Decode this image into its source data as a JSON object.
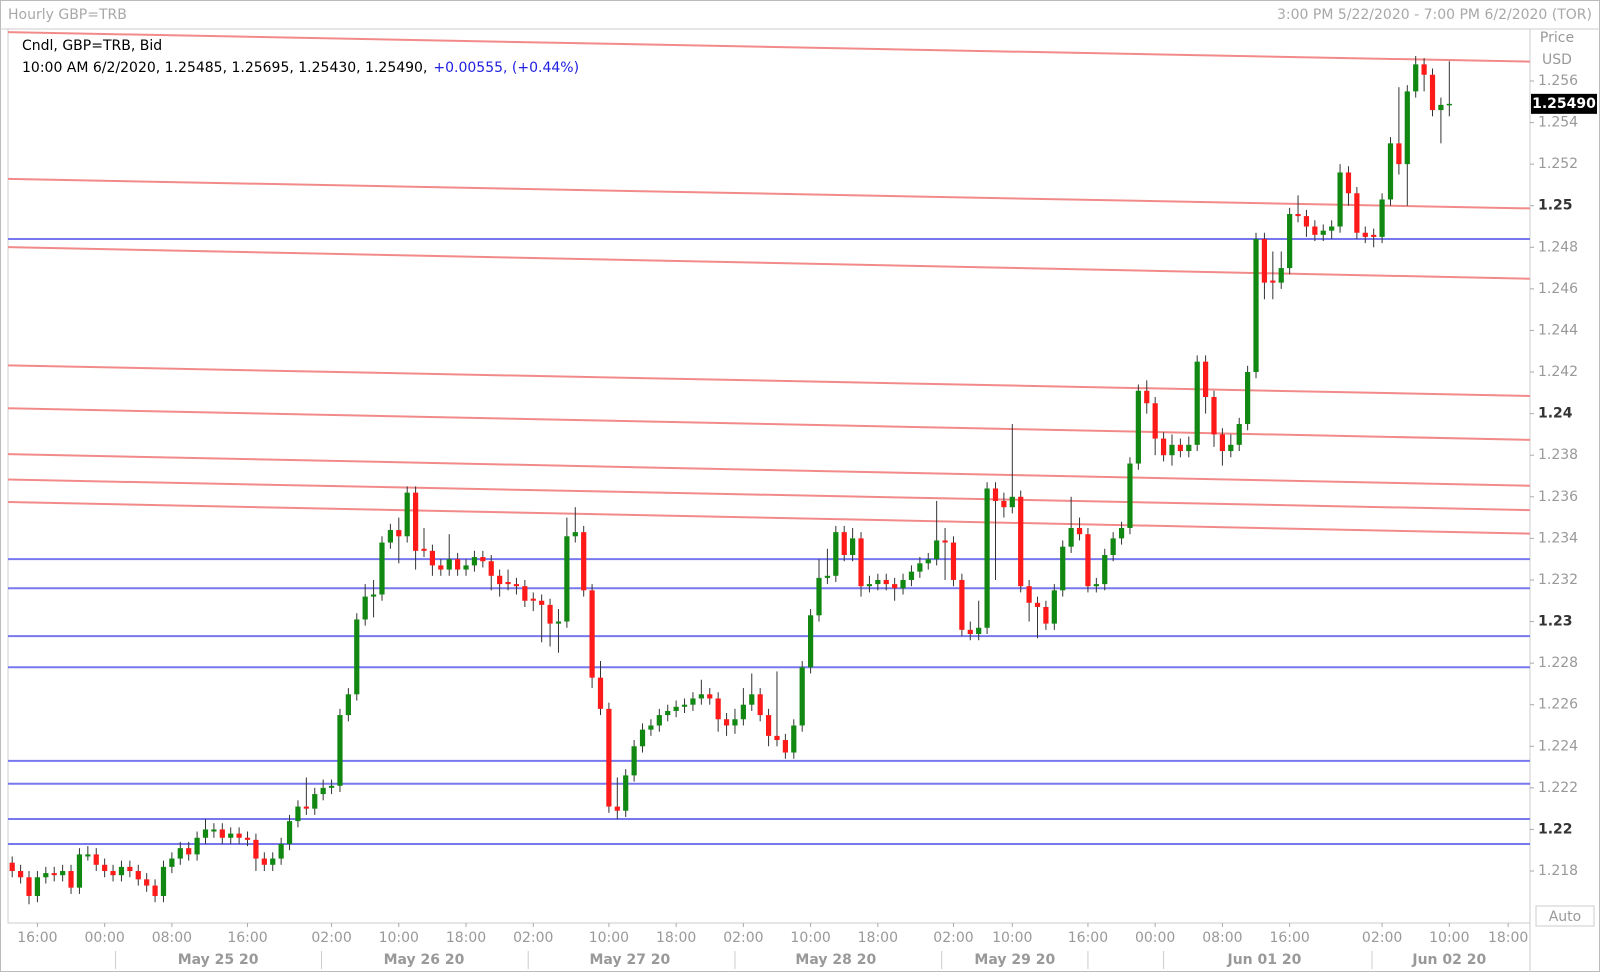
{
  "chart_data": {
    "type": "candlestick",
    "title": "Hourly GBP=TRB",
    "range": "3:00 PM 5/22/2020 - 7:00 PM 6/2/2020 (TOR)",
    "legend": "Cndl, GBP=TRB, Bid",
    "info": "10:00 AM 6/2/2020, 1.25485, 1.25695, 1.25430, 1.25490,",
    "change": "+0.00555, (+0.44%)",
    "axis_title": "Price",
    "axis_unit": "USD",
    "axis_mode": "Auto",
    "last_price": {
      "value": 1.2549,
      "label": "1.25490"
    },
    "up_color": "#118811",
    "down_color": "#ff1a1a",
    "trendline_color": "#f28a8a",
    "level_color": "#7878ee",
    "ylim": [
      1.2155,
      1.2585
    ],
    "yticks": [
      {
        "value": 1.218,
        "label": "1.218"
      },
      {
        "value": 1.22,
        "label": "1.22"
      },
      {
        "value": 1.222,
        "label": "1.222"
      },
      {
        "value": 1.224,
        "label": "1.224"
      },
      {
        "value": 1.226,
        "label": "1.226"
      },
      {
        "value": 1.228,
        "label": "1.228"
      },
      {
        "value": 1.23,
        "label": "1.23"
      },
      {
        "value": 1.232,
        "label": "1.232"
      },
      {
        "value": 1.234,
        "label": "1.234"
      },
      {
        "value": 1.236,
        "label": "1.236"
      },
      {
        "value": 1.238,
        "label": "1.238"
      },
      {
        "value": 1.24,
        "label": "1.24"
      },
      {
        "value": 1.242,
        "label": "1.242"
      },
      {
        "value": 1.244,
        "label": "1.244"
      },
      {
        "value": 1.246,
        "label": "1.246"
      },
      {
        "value": 1.248,
        "label": "1.248"
      },
      {
        "value": 1.25,
        "label": "1.25"
      },
      {
        "value": 1.252,
        "label": "1.252"
      },
      {
        "value": 1.254,
        "label": "1.254"
      },
      {
        "value": 1.256,
        "label": "1.256"
      }
    ],
    "xlim": [
      -0.5,
      180.6
    ],
    "xticks": [
      {
        "value": 3,
        "label": "16:00"
      },
      {
        "value": 11,
        "label": "00:00"
      },
      {
        "value": 19,
        "label": "08:00"
      },
      {
        "value": 28,
        "label": "16:00"
      },
      {
        "value": 38,
        "label": "02:00"
      },
      {
        "value": 46,
        "label": "10:00"
      },
      {
        "value": 54,
        "label": "18:00"
      },
      {
        "value": 62,
        "label": "02:00"
      },
      {
        "value": 71,
        "label": "10:00"
      },
      {
        "value": 79,
        "label": "18:00"
      },
      {
        "value": 87,
        "label": "02:00"
      },
      {
        "value": 95,
        "label": "10:00"
      },
      {
        "value": 103,
        "label": "18:00"
      },
      {
        "value": 112,
        "label": "02:00"
      },
      {
        "value": 119,
        "label": "10:00"
      },
      {
        "value": 128,
        "label": "16:00"
      },
      {
        "value": 136,
        "label": "00:00"
      },
      {
        "value": 144,
        "label": "08:00"
      },
      {
        "value": 152,
        "label": "16:00"
      },
      {
        "value": 163,
        "label": "02:00"
      },
      {
        "value": 171,
        "label": "10:00"
      },
      {
        "value": 178,
        "label": "18:00"
      }
    ],
    "day_labels": [
      {
        "value": 24.5,
        "label": "May 25 20"
      },
      {
        "value": 49,
        "label": "May 26 20"
      },
      {
        "value": 73.5,
        "label": "May 27 20"
      },
      {
        "value": 98,
        "label": "May 28 20"
      },
      {
        "value": 119.3,
        "label": "May 29 20"
      },
      {
        "value": 149,
        "label": "Jun 01 20"
      },
      {
        "value": 171,
        "label": "Jun 02 20"
      }
    ],
    "day_ticks": [
      12.3,
      36.8,
      61.4,
      86,
      110.6,
      128,
      137,
      161.8
    ],
    "trendlines": [
      {
        "start": 1.25835,
        "end": 1.25693
      },
      {
        "start": 1.25129,
        "end": 1.24987
      },
      {
        "start": 1.24801,
        "end": 1.24649
      },
      {
        "start": 1.24232,
        "end": 1.24085
      },
      {
        "start": 1.24026,
        "end": 1.23874
      },
      {
        "start": 1.23805,
        "end": 1.23653
      },
      {
        "start": 1.23683,
        "end": 1.23536
      },
      {
        "start": 1.23575,
        "end": 1.23423
      }
    ],
    "levels": [
      1.2484,
      1.233,
      1.2316,
      1.2293,
      1.2278,
      1.2233,
      1.2222,
      1.2205,
      1.2193
    ],
    "ohlc": [
      [
        1.2184,
        1.2187,
        1.2177,
        1.218
      ],
      [
        1.218,
        1.2183,
        1.2174,
        1.2177
      ],
      [
        1.2177,
        1.218,
        1.2164,
        1.2168
      ],
      [
        1.2168,
        1.218,
        1.2165,
        1.2177
      ],
      [
        1.2177,
        1.2182,
        1.2174,
        1.2179
      ],
      [
        1.2179,
        1.2182,
        1.2175,
        1.2178
      ],
      [
        1.2178,
        1.2183,
        1.2175,
        1.218
      ],
      [
        1.218,
        1.2183,
        1.2169,
        1.2172
      ],
      [
        1.2172,
        1.2191,
        1.2169,
        1.2188
      ],
      [
        1.2187,
        1.2192,
        1.2185,
        1.2188
      ],
      [
        1.2188,
        1.2191,
        1.218,
        1.2183
      ],
      [
        1.2183,
        1.2186,
        1.2177,
        1.218
      ],
      [
        1.218,
        1.2183,
        1.2175,
        1.2178
      ],
      [
        1.2178,
        1.2185,
        1.2175,
        1.2182
      ],
      [
        1.2182,
        1.2185,
        1.2177,
        1.218
      ],
      [
        1.218,
        1.2183,
        1.2173,
        1.2176
      ],
      [
        1.2176,
        1.2179,
        1.217,
        1.2173
      ],
      [
        1.2173,
        1.2176,
        1.2165,
        1.2168
      ],
      [
        1.2168,
        1.2185,
        1.2165,
        1.2182
      ],
      [
        1.2182,
        1.2189,
        1.2179,
        1.2186
      ],
      [
        1.2186,
        1.2194,
        1.2183,
        1.2191
      ],
      [
        1.2191,
        1.2194,
        1.2185,
        1.2188
      ],
      [
        1.2188,
        1.2199,
        1.2185,
        1.2196
      ],
      [
        1.2196,
        1.2205,
        1.2193,
        1.22
      ],
      [
        1.2199,
        1.2203,
        1.2196,
        1.22
      ],
      [
        1.22,
        1.2203,
        1.2193,
        1.2196
      ],
      [
        1.2196,
        1.2201,
        1.2193,
        1.2198
      ],
      [
        1.2198,
        1.2201,
        1.2193,
        1.2196
      ],
      [
        1.2196,
        1.2199,
        1.2192,
        1.2195
      ],
      [
        1.2195,
        1.2198,
        1.218,
        1.2186
      ],
      [
        1.2186,
        1.2189,
        1.218,
        1.2183
      ],
      [
        1.2183,
        1.2189,
        1.218,
        1.2186
      ],
      [
        1.2186,
        1.2196,
        1.2183,
        1.2193
      ],
      [
        1.2193,
        1.2207,
        1.219,
        1.2204
      ],
      [
        1.2204,
        1.2214,
        1.2201,
        1.2211
      ],
      [
        1.2211,
        1.2225,
        1.2207,
        1.221
      ],
      [
        1.221,
        1.222,
        1.2207,
        1.2217
      ],
      [
        1.2217,
        1.2224,
        1.2214,
        1.222
      ],
      [
        1.222,
        1.2224,
        1.2217,
        1.2221
      ],
      [
        1.2221,
        1.2258,
        1.2218,
        1.2255
      ],
      [
        1.2255,
        1.2268,
        1.2252,
        1.2265
      ],
      [
        1.2265,
        1.2304,
        1.2262,
        1.2301
      ],
      [
        1.2301,
        1.2318,
        1.2298,
        1.2312
      ],
      [
        1.2312,
        1.232,
        1.2302,
        1.2313
      ],
      [
        1.2313,
        1.2341,
        1.231,
        1.2338
      ],
      [
        1.2338,
        1.2347,
        1.2335,
        1.2344
      ],
      [
        1.2344,
        1.235,
        1.2328,
        1.2341
      ],
      [
        1.2341,
        1.2365,
        1.2338,
        1.2362
      ],
      [
        1.2362,
        1.2365,
        1.2325,
        1.2334
      ],
      [
        1.2335,
        1.2345,
        1.2331,
        1.2334
      ],
      [
        1.2334,
        1.2337,
        1.2322,
        1.2327
      ],
      [
        1.2327,
        1.233,
        1.2322,
        1.2325
      ],
      [
        1.2325,
        1.2342,
        1.2322,
        1.233
      ],
      [
        1.233,
        1.2333,
        1.2322,
        1.2325
      ],
      [
        1.2325,
        1.233,
        1.2322,
        1.2327
      ],
      [
        1.2327,
        1.2334,
        1.2324,
        1.2331
      ],
      [
        1.2331,
        1.2334,
        1.2326,
        1.2329
      ],
      [
        1.2329,
        1.2332,
        1.2315,
        1.2322
      ],
      [
        1.2322,
        1.2325,
        1.2312,
        1.2318
      ],
      [
        1.2319,
        1.2325,
        1.2315,
        1.2318
      ],
      [
        1.2318,
        1.2321,
        1.2313,
        1.2317
      ],
      [
        1.2317,
        1.232,
        1.2307,
        1.231
      ],
      [
        1.2311,
        1.2314,
        1.2305,
        1.231
      ],
      [
        1.231,
        1.2313,
        1.229,
        1.2308
      ],
      [
        1.2308,
        1.2311,
        1.2288,
        1.2299
      ],
      [
        1.2299,
        1.2306,
        1.2285,
        1.23
      ],
      [
        1.23,
        1.235,
        1.2297,
        1.2341
      ],
      [
        1.2341,
        1.2355,
        1.2338,
        1.2343
      ],
      [
        1.2343,
        1.2346,
        1.2312,
        1.2315
      ],
      [
        1.2315,
        1.2318,
        1.2268,
        1.2273
      ],
      [
        1.2273,
        1.2281,
        1.2255,
        1.2258
      ],
      [
        1.2258,
        1.2261,
        1.2208,
        1.2211
      ],
      [
        1.2211,
        1.2225,
        1.2205,
        1.2209
      ],
      [
        1.2209,
        1.2229,
        1.2206,
        1.2226
      ],
      [
        1.2226,
        1.2243,
        1.2223,
        1.224
      ],
      [
        1.224,
        1.2251,
        1.2237,
        1.2248
      ],
      [
        1.2248,
        1.2253,
        1.2245,
        1.225
      ],
      [
        1.225,
        1.2258,
        1.2247,
        1.2255
      ],
      [
        1.2255,
        1.226,
        1.2252,
        1.2257
      ],
      [
        1.2257,
        1.2262,
        1.2254,
        1.2259
      ],
      [
        1.2259,
        1.2263,
        1.2256,
        1.226
      ],
      [
        1.226,
        1.2266,
        1.2257,
        1.2263
      ],
      [
        1.2263,
        1.2272,
        1.226,
        1.2265
      ],
      [
        1.2265,
        1.2268,
        1.226,
        1.2263
      ],
      [
        1.2263,
        1.2266,
        1.2247,
        1.2253
      ],
      [
        1.2253,
        1.2256,
        1.2245,
        1.225
      ],
      [
        1.225,
        1.2258,
        1.2246,
        1.2253
      ],
      [
        1.2253,
        1.2268,
        1.225,
        1.226
      ],
      [
        1.226,
        1.2275,
        1.2257,
        1.2265
      ],
      [
        1.2265,
        1.2268,
        1.2252,
        1.2255
      ],
      [
        1.2255,
        1.2258,
        1.224,
        1.2245
      ],
      [
        1.2245,
        1.2276,
        1.224,
        1.2243
      ],
      [
        1.2243,
        1.2246,
        1.2234,
        1.2237
      ],
      [
        1.2237,
        1.2253,
        1.2234,
        1.225
      ],
      [
        1.225,
        1.2281,
        1.2247,
        1.2278
      ],
      [
        1.2278,
        1.2306,
        1.2275,
        1.2303
      ],
      [
        1.2303,
        1.233,
        1.23,
        1.2321
      ],
      [
        1.2321,
        1.2335,
        1.2318,
        1.2322
      ],
      [
        1.2322,
        1.2346,
        1.2319,
        1.2343
      ],
      [
        1.2343,
        1.2346,
        1.2329,
        1.2332
      ],
      [
        1.2332,
        1.2345,
        1.2329,
        1.234
      ],
      [
        1.234,
        1.2343,
        1.2312,
        1.2317
      ],
      [
        1.2317,
        1.2322,
        1.2314,
        1.2318
      ],
      [
        1.2318,
        1.2323,
        1.2315,
        1.232
      ],
      [
        1.232,
        1.2323,
        1.2315,
        1.2318
      ],
      [
        1.2318,
        1.2321,
        1.231,
        1.2316
      ],
      [
        1.2316,
        1.2323,
        1.2313,
        1.232
      ],
      [
        1.232,
        1.2327,
        1.2317,
        1.2324
      ],
      [
        1.2324,
        1.2331,
        1.2321,
        1.2328
      ],
      [
        1.2328,
        1.2333,
        1.2325,
        1.233
      ],
      [
        1.233,
        1.2358,
        1.2327,
        1.2339
      ],
      [
        1.2339,
        1.2345,
        1.232,
        1.2338
      ],
      [
        1.2338,
        1.2341,
        1.2317,
        1.232
      ],
      [
        1.232,
        1.2323,
        1.2293,
        1.2296
      ],
      [
        1.2296,
        1.23,
        1.2291,
        1.2294
      ],
      [
        1.2294,
        1.231,
        1.2291,
        1.2297
      ],
      [
        1.2297,
        1.2367,
        1.2294,
        1.2364
      ],
      [
        1.2364,
        1.2367,
        1.232,
        1.2358
      ],
      [
        1.2358,
        1.2362,
        1.235,
        1.2355
      ],
      [
        1.2355,
        1.2395,
        1.2352,
        1.236
      ],
      [
        1.236,
        1.2363,
        1.2314,
        1.2317
      ],
      [
        1.2317,
        1.232,
        1.23,
        1.2309
      ],
      [
        1.2309,
        1.2312,
        1.2292,
        1.2307
      ],
      [
        1.2307,
        1.231,
        1.2296,
        1.2299
      ],
      [
        1.2299,
        1.2318,
        1.2296,
        1.2315
      ],
      [
        1.2315,
        1.2339,
        1.2312,
        1.2336
      ],
      [
        1.2336,
        1.236,
        1.2333,
        1.2345
      ],
      [
        1.2345,
        1.235,
        1.2339,
        1.2342
      ],
      [
        1.2342,
        1.2345,
        1.2314,
        1.2317
      ],
      [
        1.2317,
        1.2321,
        1.2314,
        1.2318
      ],
      [
        1.2318,
        1.2335,
        1.2315,
        1.2332
      ],
      [
        1.2332,
        1.2343,
        1.2329,
        1.234
      ],
      [
        1.234,
        1.2348,
        1.2337,
        1.2345
      ],
      [
        1.2345,
        1.2379,
        1.2342,
        1.2376
      ],
      [
        1.2376,
        1.2414,
        1.2373,
        1.2411
      ],
      [
        1.2411,
        1.2416,
        1.24,
        1.2405
      ],
      [
        1.2405,
        1.2408,
        1.238,
        1.2388
      ],
      [
        1.2388,
        1.2391,
        1.2377,
        1.238
      ],
      [
        1.238,
        1.239,
        1.2375,
        1.2385
      ],
      [
        1.2385,
        1.2388,
        1.2379,
        1.2382
      ],
      [
        1.2382,
        1.2389,
        1.2379,
        1.2385
      ],
      [
        1.2385,
        1.2428,
        1.2382,
        1.2425
      ],
      [
        1.2425,
        1.2428,
        1.24,
        1.2408
      ],
      [
        1.2408,
        1.2411,
        1.2384,
        1.239
      ],
      [
        1.239,
        1.2393,
        1.2375,
        1.2382
      ],
      [
        1.2382,
        1.239,
        1.2379,
        1.2385
      ],
      [
        1.2385,
        1.2398,
        1.2382,
        1.2395
      ],
      [
        1.2395,
        1.2423,
        1.2392,
        1.242
      ],
      [
        1.242,
        1.2487,
        1.2417,
        1.2484
      ],
      [
        1.2484,
        1.2487,
        1.2455,
        1.2463
      ],
      [
        1.2464,
        1.2478,
        1.2455,
        1.2463
      ],
      [
        1.2463,
        1.2478,
        1.246,
        1.247
      ],
      [
        1.247,
        1.2499,
        1.2467,
        1.2496
      ],
      [
        1.2496,
        1.2505,
        1.2492,
        1.2495
      ],
      [
        1.2495,
        1.2498,
        1.2485,
        1.249
      ],
      [
        1.249,
        1.2493,
        1.2483,
        1.2486
      ],
      [
        1.2486,
        1.2491,
        1.2483,
        1.2488
      ],
      [
        1.2488,
        1.2493,
        1.2484,
        1.249
      ],
      [
        1.249,
        1.252,
        1.2487,
        1.2516
      ],
      [
        1.2516,
        1.2519,
        1.25,
        1.2506
      ],
      [
        1.2506,
        1.2509,
        1.2484,
        1.2487
      ],
      [
        1.2487,
        1.249,
        1.2482,
        1.2485
      ],
      [
        1.2486,
        1.2489,
        1.248,
        1.2485
      ],
      [
        1.2485,
        1.2506,
        1.2482,
        1.2503
      ],
      [
        1.2503,
        1.2533,
        1.25,
        1.253
      ],
      [
        1.253,
        1.2557,
        1.2515,
        1.252
      ],
      [
        1.252,
        1.2558,
        1.25,
        1.2555
      ],
      [
        1.2555,
        1.2572,
        1.2552,
        1.2568
      ],
      [
        1.2568,
        1.2571,
        1.2555,
        1.2563
      ],
      [
        1.2563,
        1.2566,
        1.2543,
        1.2546
      ],
      [
        1.2546,
        1.2552,
        1.253,
        1.25485
      ],
      [
        1.25485,
        1.25695,
        1.2543,
        1.2549
      ]
    ]
  }
}
